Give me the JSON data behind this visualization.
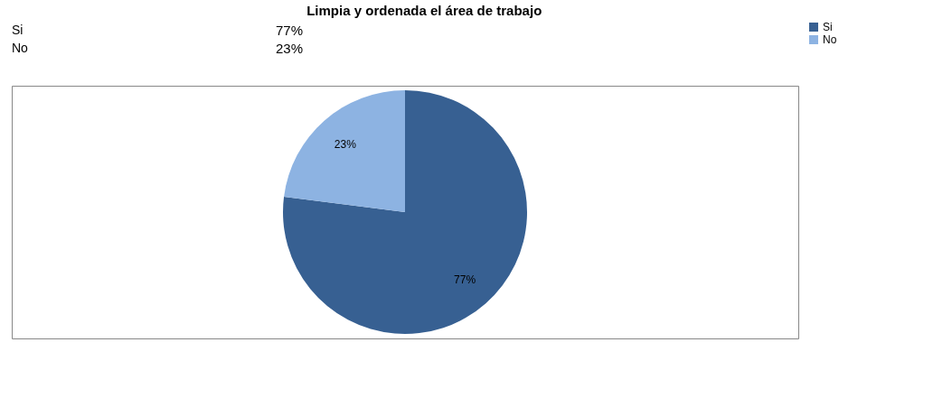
{
  "chart_data": {
    "type": "pie",
    "title": "Limpia y ordenada el área de trabajo",
    "categories": [
      "Si",
      "No"
    ],
    "values": [
      77,
      23
    ],
    "value_labels": [
      "77%",
      "23%"
    ],
    "colors": [
      "#376092",
      "#8db3e2"
    ],
    "legend": "right"
  }
}
